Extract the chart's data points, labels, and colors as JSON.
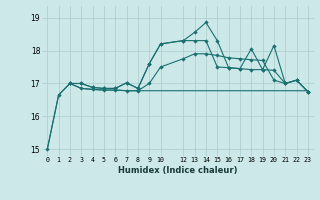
{
  "xlabel": "Humidex (Indice chaleur)",
  "background_color": "#cce8e8",
  "grid_color": "#aacccc",
  "line_color": "#1a7070",
  "xlim": [
    -0.5,
    23.5
  ],
  "ylim": [
    14.8,
    19.35
  ],
  "yticks": [
    15,
    16,
    17,
    18,
    19
  ],
  "xticks": [
    0,
    1,
    2,
    3,
    4,
    5,
    6,
    7,
    8,
    9,
    10,
    12,
    13,
    14,
    15,
    16,
    17,
    18,
    19,
    20,
    21,
    22,
    23
  ],
  "line1_x": [
    0,
    1,
    2,
    3,
    4,
    5,
    6,
    7,
    8,
    9,
    10,
    12,
    13,
    14,
    15,
    16,
    17,
    18,
    19,
    20,
    21,
    22,
    23
  ],
  "line1_y": [
    15.0,
    16.65,
    17.0,
    16.85,
    16.82,
    16.8,
    16.8,
    16.78,
    16.78,
    16.78,
    16.78,
    16.78,
    16.78,
    16.78,
    16.78,
    16.78,
    16.78,
    16.78,
    16.78,
    16.78,
    16.78,
    16.78,
    16.78
  ],
  "line2_x": [
    0,
    1,
    2,
    3,
    4,
    5,
    6,
    7,
    8,
    9,
    10,
    12,
    13,
    14,
    15,
    16,
    17,
    18,
    19,
    20,
    21,
    22,
    23
  ],
  "line2_y": [
    15.0,
    16.65,
    17.0,
    16.85,
    16.82,
    16.8,
    16.8,
    16.78,
    16.78,
    17.0,
    17.5,
    17.75,
    17.9,
    17.9,
    17.85,
    17.78,
    17.75,
    17.72,
    17.7,
    17.1,
    17.0,
    17.1,
    16.75
  ],
  "line3_x": [
    2,
    3,
    4,
    5,
    6,
    7,
    8,
    9,
    10,
    12,
    13,
    14,
    15,
    16,
    17,
    18,
    19,
    20,
    21,
    22,
    23
  ],
  "line3_y": [
    17.0,
    17.0,
    16.88,
    16.85,
    16.85,
    17.02,
    16.85,
    17.6,
    18.2,
    18.3,
    18.3,
    18.3,
    17.5,
    17.48,
    17.45,
    17.42,
    17.42,
    17.4,
    17.0,
    17.1,
    16.75
  ],
  "line4_x": [
    2,
    3,
    4,
    5,
    6,
    7,
    8,
    9,
    10,
    12,
    13,
    14,
    15,
    16,
    17,
    18,
    19,
    20,
    21,
    22,
    23
  ],
  "line4_y": [
    17.0,
    17.0,
    16.88,
    16.85,
    16.85,
    17.02,
    16.85,
    17.6,
    18.2,
    18.3,
    18.55,
    18.85,
    18.3,
    17.48,
    17.45,
    18.05,
    17.42,
    18.15,
    17.0,
    17.1,
    16.75
  ]
}
